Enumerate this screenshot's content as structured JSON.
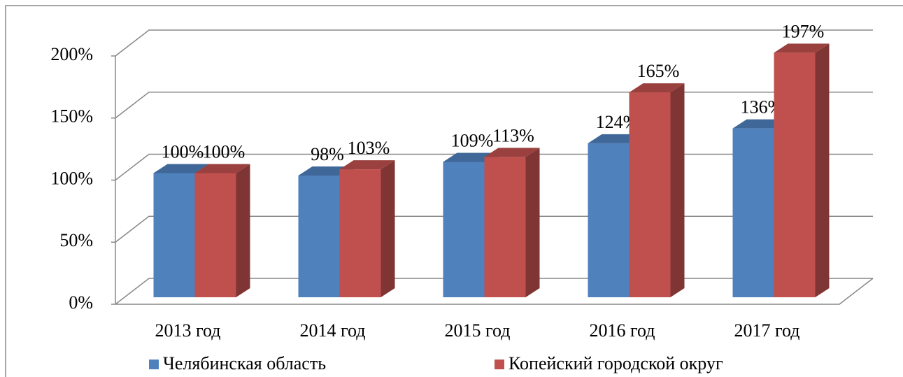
{
  "chart_data": {
    "type": "bar3d",
    "categories": [
      "2013 год",
      "2014 год",
      "2015 год",
      "2016 год",
      "2017 год"
    ],
    "series": [
      {
        "name": "Челябинская область",
        "color": "#4f81bd",
        "values": [
          100,
          98,
          109,
          124,
          136
        ],
        "value_labels": [
          "100%",
          "98%",
          "109%",
          "124%",
          "136%"
        ]
      },
      {
        "name": "Копейский городской округ",
        "color": "#c0504d",
        "values": [
          100,
          103,
          113,
          165,
          197
        ],
        "value_labels": [
          "100%",
          "103%",
          "113%",
          "165%",
          "197%"
        ]
      }
    ],
    "ylim": [
      0,
      200
    ],
    "yticks": [
      {
        "value": 0,
        "label": "0%"
      },
      {
        "value": 50,
        "label": "50%"
      },
      {
        "value": 100,
        "label": "100%"
      },
      {
        "value": 150,
        "label": "150%"
      },
      {
        "value": 200,
        "label": "200%"
      }
    ],
    "grid": true,
    "legend": "bottom"
  }
}
